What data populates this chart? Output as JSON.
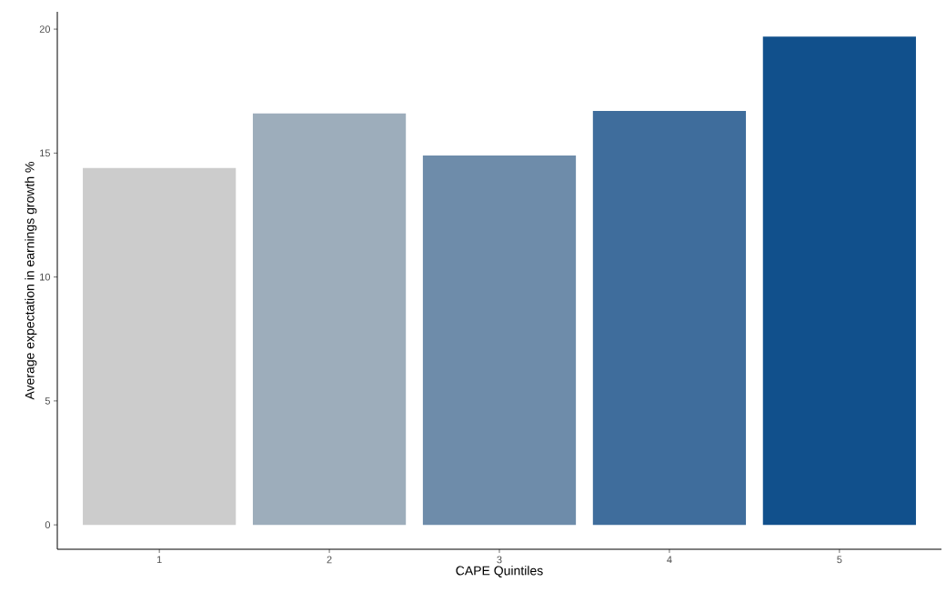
{
  "chart_data": {
    "type": "bar",
    "xlabel": "CAPE Quintiles",
    "ylabel": "Average expectation in earnings growth  %",
    "categories": [
      "1",
      "2",
      "3",
      "4",
      "5"
    ],
    "values": [
      14.4,
      16.6,
      14.9,
      16.7,
      19.7
    ],
    "colors": [
      "#cccccc",
      "#9dadbb",
      "#6e8caa",
      "#3f6d9c",
      "#11508c"
    ],
    "ylim": [
      -0.985,
      20.7
    ],
    "yticks": [
      0,
      5,
      10,
      15,
      20
    ]
  }
}
